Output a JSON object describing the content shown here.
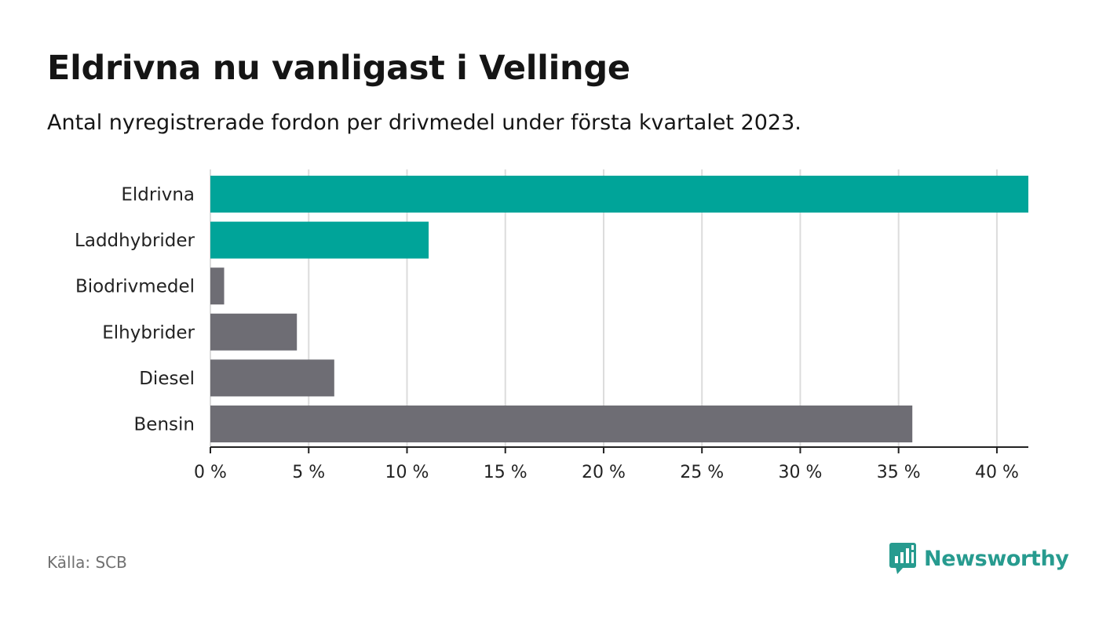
{
  "title": "Eldrivna nu vanligast i Vellinge",
  "subtitle": "Antal nyregistrerade fordon per drivmedel under första kvartalet 2023.",
  "source": "Källa: SCB",
  "brand": {
    "name": "Newsworthy",
    "icon": "newsworthy-chat-bars-icon",
    "color": "#279b8f"
  },
  "chart_data": {
    "type": "bar",
    "orientation": "horizontal",
    "categories": [
      "Eldrivna",
      "Laddhybrider",
      "Biodrivmedel",
      "Elhybrider",
      "Diesel",
      "Bensin"
    ],
    "values": [
      41.6,
      11.1,
      0.7,
      4.4,
      6.3,
      35.7
    ],
    "unit": "%",
    "bar_colors": [
      "#00a499",
      "#00a499",
      "#6e6d74",
      "#6e6d74",
      "#6e6d74",
      "#6e6d74"
    ],
    "xlim": [
      0,
      41.6
    ],
    "xticks": [
      0,
      5,
      10,
      15,
      20,
      25,
      30,
      35,
      40
    ],
    "xtick_labels": [
      "0 %",
      "5 %",
      "10 %",
      "15 %",
      "20 %",
      "25 %",
      "30 %",
      "35 %",
      "40 %"
    ],
    "grid": true
  }
}
